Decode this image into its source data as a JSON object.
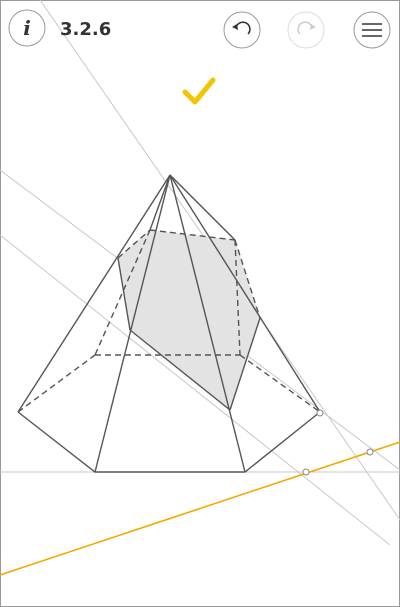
{
  "header": {
    "info": "i",
    "level": "3.2.6"
  }
}
